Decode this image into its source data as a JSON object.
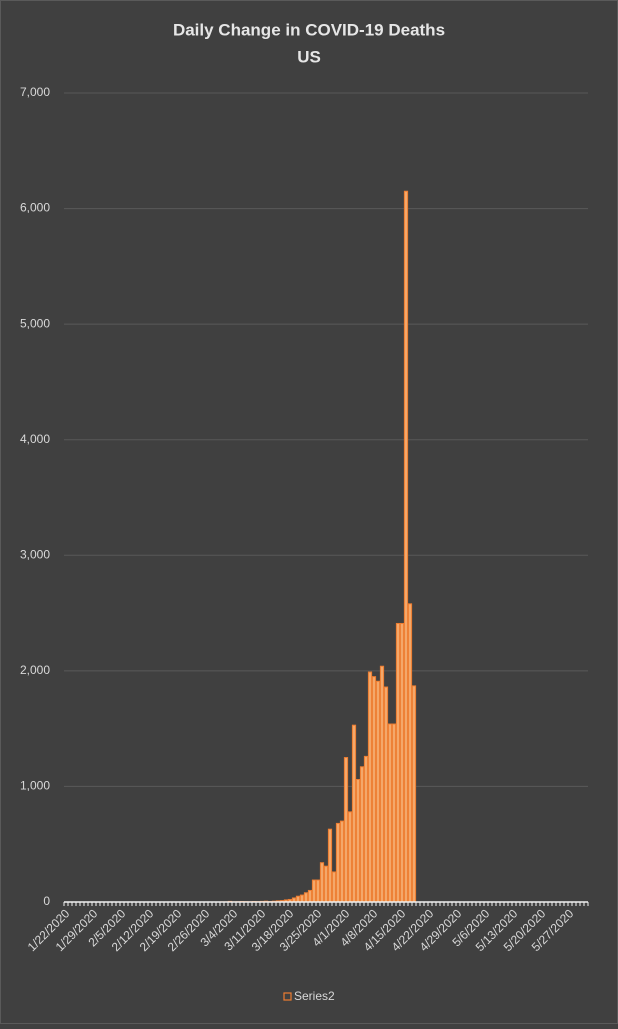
{
  "chart_data": {
    "type": "bar",
    "title": "Daily Change in COVID-19 Deaths",
    "subtitle": "US",
    "categories": [
      "1/22/2020",
      null,
      null,
      null,
      null,
      null,
      null,
      "1/29/2020",
      null,
      null,
      null,
      null,
      null,
      null,
      "2/5/2020",
      null,
      null,
      null,
      null,
      null,
      null,
      "2/12/2020",
      null,
      null,
      null,
      null,
      null,
      null,
      "2/19/2020",
      null,
      null,
      null,
      null,
      null,
      null,
      "2/26/2020",
      null,
      null,
      null,
      null,
      null,
      null,
      "3/4/2020",
      null,
      null,
      null,
      null,
      null,
      null,
      "3/11/2020",
      null,
      null,
      null,
      null,
      null,
      null,
      "3/18/2020",
      null,
      null,
      null,
      null,
      null,
      null,
      "3/25/2020",
      null,
      null,
      null,
      null,
      null,
      null,
      "4/1/2020",
      null,
      null,
      null,
      null,
      null,
      null,
      "4/8/2020",
      null,
      null,
      null,
      null,
      null,
      null,
      "4/15/2020",
      null,
      null,
      null,
      null,
      null,
      null,
      "4/22/2020",
      null,
      null,
      null,
      null,
      null,
      null,
      "4/29/2020",
      null,
      null,
      null,
      null,
      null,
      null,
      "5/6/2020",
      null,
      null,
      null,
      null,
      null,
      null,
      "5/13/2020",
      null,
      null,
      null,
      null,
      null,
      null,
      "5/20/2020",
      null,
      null,
      null,
      null,
      null,
      null,
      "5/27/2020",
      null,
      null,
      null,
      null
    ],
    "series": [
      {
        "name": "Series2",
        "color": "#ed7d31",
        "values": [
          0,
          0,
          0,
          0,
          0,
          0,
          0,
          0,
          0,
          0,
          0,
          0,
          0,
          0,
          0,
          0,
          0,
          0,
          0,
          0,
          0,
          0,
          0,
          0,
          0,
          0,
          0,
          0,
          0,
          0,
          0,
          0,
          0,
          0,
          0,
          0,
          0,
          0,
          0,
          1,
          1,
          5,
          1,
          2,
          4,
          3,
          2,
          4,
          3,
          5,
          7,
          4,
          7,
          10,
          12,
          18,
          22,
          35,
          50,
          60,
          80,
          100,
          190,
          190,
          340,
          310,
          630,
          260,
          680,
          700,
          1250,
          780,
          1530,
          1060,
          1170,
          1260,
          1990,
          1950,
          1910,
          2040,
          1860,
          1540,
          1540,
          2410,
          2410,
          6150,
          2580,
          1870,
          null,
          null,
          null,
          null,
          null,
          null,
          null,
          null,
          null,
          null,
          null,
          null,
          null,
          null,
          null,
          null,
          null,
          null,
          null,
          null,
          null,
          null,
          null,
          null,
          null,
          null,
          null,
          null,
          null,
          null,
          null,
          null,
          null,
          null,
          null,
          null,
          null,
          null,
          null,
          null,
          null,
          null,
          null
        ]
      }
    ],
    "ylim": [
      0,
      7000
    ],
    "yticks": [
      0,
      {
        "value": 1000,
        "label": "1,000"
      },
      {
        "value": 2000,
        "label": "2,000"
      },
      {
        "value": 3000,
        "label": "3,000"
      },
      {
        "value": 4000,
        "label": "4,000"
      },
      {
        "value": 5000,
        "label": "5,000"
      },
      {
        "value": 6000,
        "label": "6,000"
      },
      {
        "value": 7000,
        "label": "7,000"
      }
    ],
    "grid": true,
    "legend": "bottom"
  }
}
